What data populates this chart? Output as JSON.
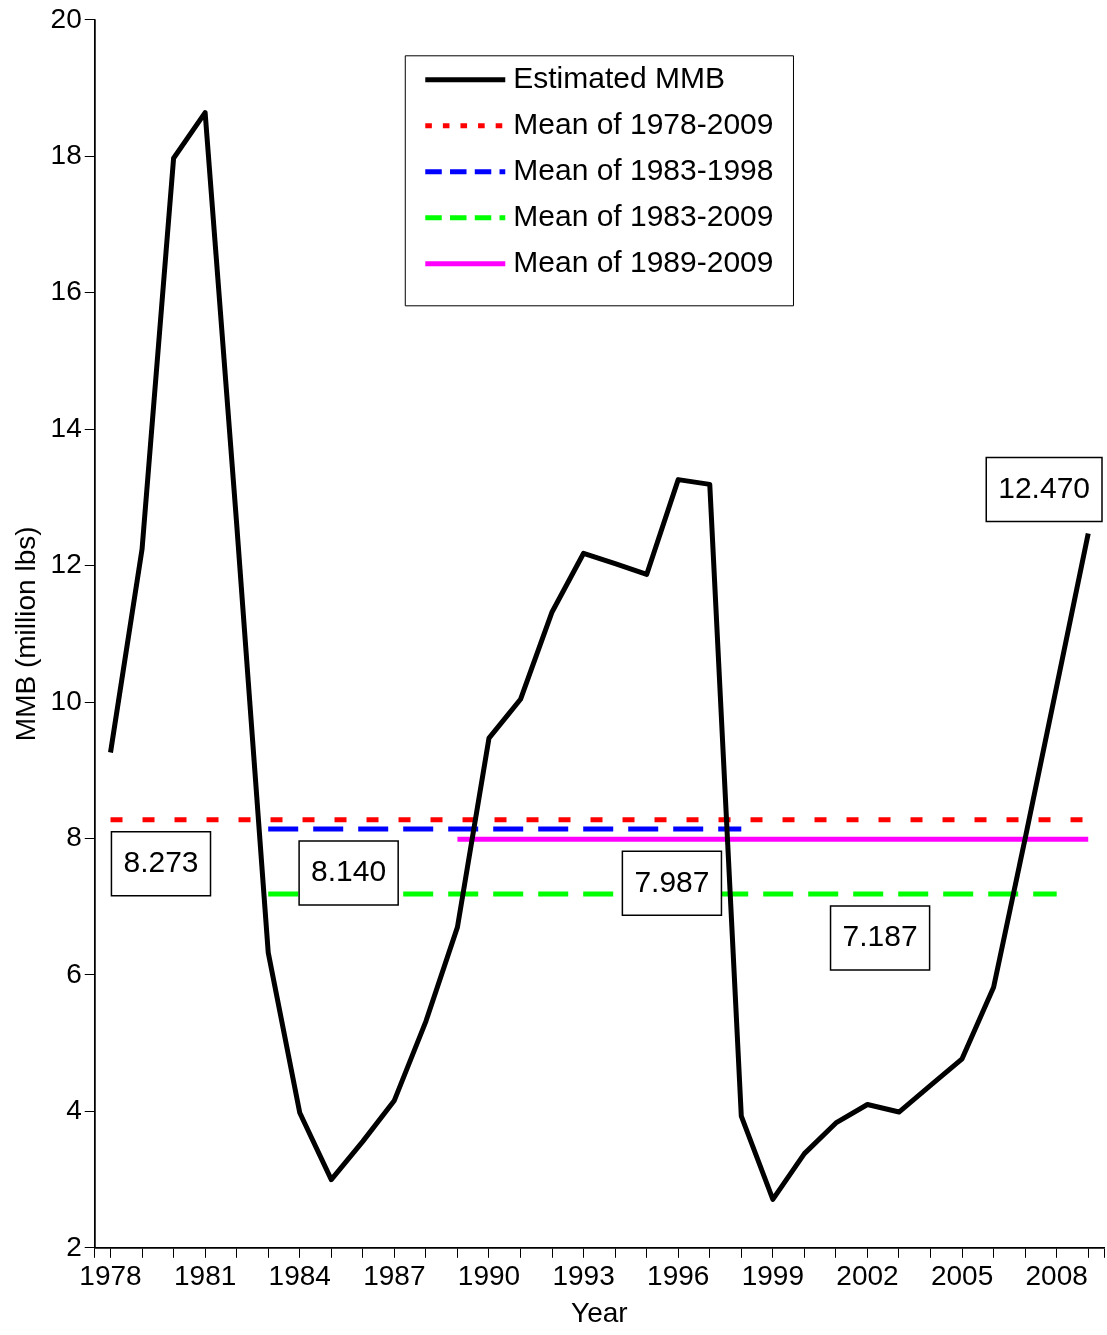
{
  "chart_data": {
    "type": "line",
    "xlabel": "Year",
    "ylabel": "MMB (million lbs)",
    "xlim": [
      1977.5,
      2009.5
    ],
    "xticks": [
      {
        "value": 1977.5,
        "label": null
      },
      1978,
      {
        "value": 1979,
        "label": null
      },
      {
        "value": 1980,
        "label": null
      },
      1981,
      {
        "value": 1982,
        "label": null
      },
      {
        "value": 1983,
        "label": null
      },
      1984,
      {
        "value": 1985,
        "label": null
      },
      {
        "value": 1986,
        "label": null
      },
      1987,
      {
        "value": 1988,
        "label": null
      },
      {
        "value": 1989,
        "label": null
      },
      1990,
      {
        "value": 1991,
        "label": null
      },
      {
        "value": 1992,
        "label": null
      },
      1993,
      {
        "value": 1994,
        "label": null
      },
      {
        "value": 1995,
        "label": null
      },
      1996,
      {
        "value": 1997,
        "label": null
      },
      {
        "value": 1998,
        "label": null
      },
      1999,
      {
        "value": 2000,
        "label": null
      },
      {
        "value": 2001,
        "label": null
      },
      2002,
      {
        "value": 2003,
        "label": null
      },
      {
        "value": 2004,
        "label": null
      },
      2005,
      {
        "value": 2006,
        "label": null
      },
      {
        "value": 2007,
        "label": null
      },
      2008,
      {
        "value": 2009,
        "label": null
      },
      {
        "value": 2009.5,
        "label": null
      }
    ],
    "ylim": [
      2,
      20
    ],
    "yticks": [
      2,
      4,
      6,
      8,
      10,
      12,
      14,
      16,
      18,
      20
    ],
    "grid": false,
    "legend": "top",
    "marker": "none",
    "series": [
      {
        "name": "Estimated MMB",
        "color": "#000000",
        "line_style": "solid",
        "x": [
          1978,
          1979,
          1980,
          1981,
          1982,
          1983,
          1984,
          1985,
          1986,
          1987,
          1988,
          1989,
          1990,
          1991,
          1992,
          1993,
          1994,
          1995,
          1996,
          1997,
          1998,
          1999,
          2000,
          2001,
          2002,
          2003,
          2004,
          2005,
          2006,
          2007,
          2008,
          2009
        ],
        "values": [
          9.26,
          12.24,
          17.97,
          18.64,
          12.61,
          6.33,
          3.98,
          3.0,
          3.56,
          4.16,
          5.32,
          6.7,
          9.47,
          10.04,
          11.32,
          12.18,
          12.03,
          11.87,
          13.26,
          13.19,
          3.93,
          2.71,
          3.38,
          3.83,
          4.1,
          3.99,
          4.38,
          4.77,
          5.82,
          8.0,
          10.23,
          12.47
        ]
      },
      {
        "name": "Mean of 1978-2009",
        "color": "#ff0000",
        "line_style": "dotted",
        "x": [
          1978,
          2009
        ],
        "values": [
          8.273,
          8.273
        ]
      },
      {
        "name": "Mean of 1983-1998",
        "color": "#0000ff",
        "line_style": "dashed",
        "x": [
          1983,
          1998
        ],
        "values": [
          8.14,
          8.14
        ]
      },
      {
        "name": "Mean of 1983-2009",
        "color": "#00ff00",
        "line_style": "dashed",
        "x": [
          1983,
          2008
        ],
        "values": [
          7.187,
          7.187
        ]
      },
      {
        "name": "Mean of 1989-2009",
        "color": "#ff00ff",
        "line_style": "solid",
        "x": [
          1989,
          2009
        ],
        "values": [
          7.987,
          7.987
        ]
      }
    ],
    "annotations": [
      {
        "text": "8.273",
        "x": 1979.6,
        "y": 8.273
      },
      {
        "text": "8.140",
        "x": 1985.55,
        "y": 8.14
      },
      {
        "text": "7.987",
        "x": 1995.8,
        "y": 7.987
      },
      {
        "text": "7.187",
        "x": 2002.4,
        "y": 7.187
      },
      {
        "text": "12.470",
        "x": 2009,
        "y": 12.47
      }
    ]
  }
}
